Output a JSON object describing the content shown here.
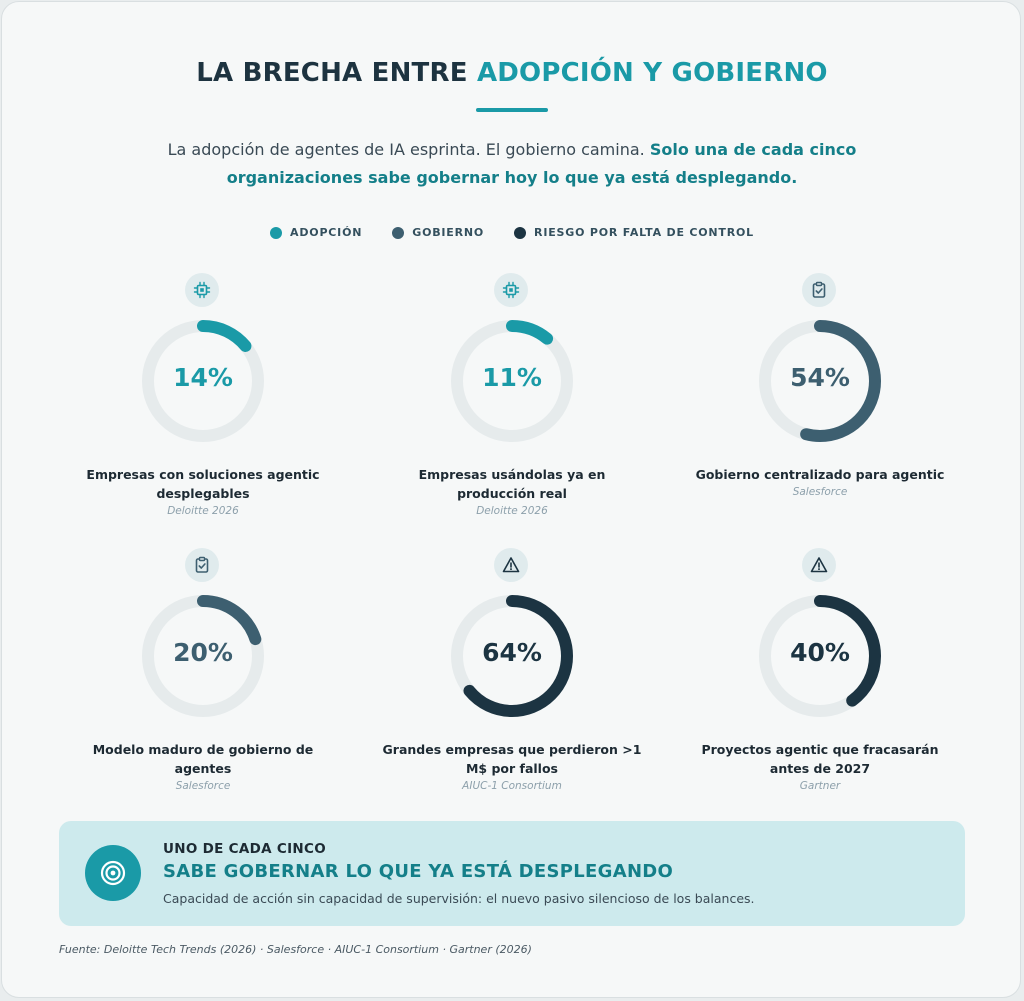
{
  "header": {
    "title_main": "LA BRECHA ENTRE",
    "title_accent": "ADOPCIÓN Y GOBIERNO",
    "subtitle_plain": "La adopción de agentes de IA esprinta. El gobierno camina.",
    "subtitle_strong": "Solo una de cada cinco organizaciones sabe gobernar hoy lo que ya está desplegando."
  },
  "colors": {
    "adopcion": "#1a9aa7",
    "gobierno": "#3d5f70",
    "riesgo": "#1c3442",
    "track": "#e6ebec"
  },
  "legend": [
    {
      "label": "ADOPCIÓN",
      "color": "#1a9aa7"
    },
    {
      "label": "GOBIERNO",
      "color": "#3d5f70"
    },
    {
      "label": "RIESGO POR FALTA DE CONTROL",
      "color": "#1c3442"
    }
  ],
  "chart_data": {
    "type": "donut",
    "unit": "%",
    "items": [
      {
        "value": 14,
        "display": "14%",
        "label": "Empresas con soluciones agentic desplegables",
        "source": "Deloitte 2026",
        "category": "adopcion",
        "icon": "chip-icon"
      },
      {
        "value": 11,
        "display": "11%",
        "label": "Empresas usándolas ya en producción real",
        "source": "Deloitte 2026",
        "category": "adopcion",
        "icon": "chip-icon"
      },
      {
        "value": 54,
        "display": "54%",
        "label": "Gobierno centralizado para agentic",
        "source": "Salesforce",
        "category": "gobierno",
        "icon": "clipboard-check-icon"
      },
      {
        "value": 20,
        "display": "20%",
        "label": "Modelo maduro de gobierno de agentes",
        "source": "Salesforce",
        "category": "gobierno",
        "icon": "clipboard-check-icon"
      },
      {
        "value": 64,
        "display": "64%",
        "label": "Grandes empresas que perdieron >1 M$ por fallos",
        "source": "AIUC-1 Consortium",
        "category": "riesgo",
        "icon": "warning-icon"
      },
      {
        "value": 40,
        "display": "40%",
        "label": "Proyectos agentic que fracasarán antes de 2027",
        "source": "Gartner",
        "category": "riesgo",
        "icon": "warning-icon"
      }
    ]
  },
  "callout": {
    "kicker": "UNO DE CADA CINCO",
    "headline": "SABE GOBERNAR LO QUE YA ESTÁ DESPLEGANDO",
    "description": "Capacidad de acción sin capacidad de supervisión: el nuevo pasivo silencioso de los balances.",
    "icon": "target-icon"
  },
  "footnote": "Fuente: Deloitte Tech Trends (2026) · Salesforce · AIUC-1 Consortium · Gartner (2026)"
}
